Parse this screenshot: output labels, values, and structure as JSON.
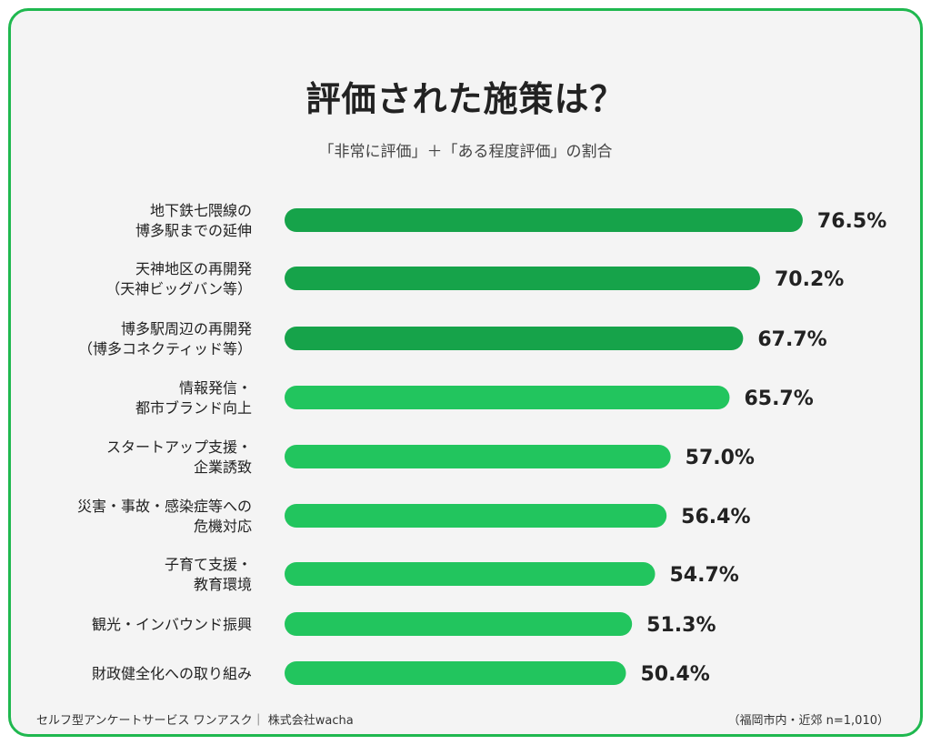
{
  "title": "評価された施策は？",
  "subtitle": "「非常に評価」＋「ある程度評価」の割合",
  "footer_left": "セルフ型アンケートサービス ワンアスク｜ 株式会社wacha",
  "footer_right": "（福岡市内・近郊 n=1,010）",
  "colors": {
    "frame": "#1fb84f",
    "bar_dark": "#16a34a",
    "bar_light": "#22c55e",
    "background": "#f4f4f4"
  },
  "chart_data": {
    "type": "bar",
    "orientation": "horizontal",
    "unit": "%",
    "xlim": [
      0,
      100
    ],
    "grid": false,
    "categories": [
      [
        "地下鉄七隈線の",
        "博多駅までの延伸"
      ],
      [
        "天神地区の再開発",
        "（天神ビッグバン等）"
      ],
      [
        "博多駅周辺の再開発",
        "（博多コネクティッド等）"
      ],
      [
        "情報発信・",
        "都市ブランド向上"
      ],
      [
        "スタートアップ支援・",
        "企業誘致"
      ],
      [
        "災害・事故・感染症等への",
        "危機対応"
      ],
      [
        "子育て支援・",
        "教育環境"
      ],
      [
        "観光・インバウンド振興"
      ],
      [
        "財政健全化への取り組み"
      ]
    ],
    "values": [
      76.5,
      70.2,
      67.7,
      65.7,
      57.0,
      56.4,
      54.7,
      51.3,
      50.4
    ],
    "value_labels": [
      "76.5%",
      "70.2%",
      "67.7%",
      "65.7%",
      "57.0%",
      "56.4%",
      "54.7%",
      "51.3%",
      "50.4%"
    ],
    "highlighted": [
      true,
      true,
      true,
      false,
      false,
      false,
      false,
      false,
      false
    ]
  }
}
